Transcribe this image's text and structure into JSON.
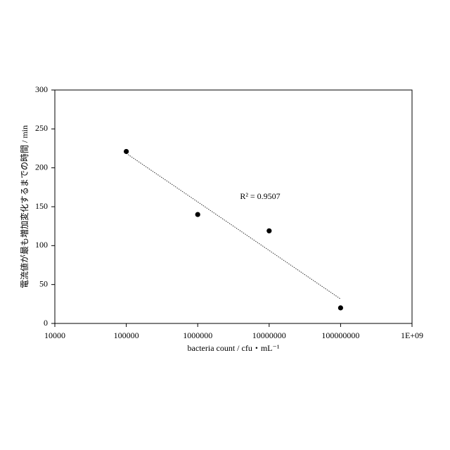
{
  "chart_data": {
    "type": "scatter",
    "x": [
      100000,
      1000000,
      10000000,
      100000000
    ],
    "values": [
      221,
      140,
      119,
      20
    ],
    "color": "#000000",
    "log_x": true,
    "grid": false,
    "xlim": [
      10000,
      1000000000
    ],
    "xticks": [
      10000,
      100000,
      1000000,
      10000000,
      100000000,
      {
        "value": 1000000000,
        "label": "1E+09"
      }
    ],
    "ylim": [
      0,
      300
    ],
    "yticks": [
      0,
      50,
      100,
      150,
      200,
      250,
      300
    ],
    "xlabel": "bacteria count / cfu・mL⁻¹",
    "ylabel": "電流値が最も増加変化するまでの時間 / min",
    "trendline": {
      "x": [
        100000,
        100000000
      ],
      "values": [
        218.6,
        31.4
      ]
    },
    "annotation": "R² = 0.9507"
  }
}
